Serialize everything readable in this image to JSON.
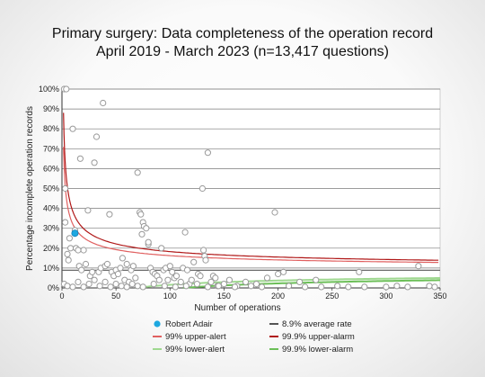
{
  "chart_data": {
    "type": "scatter",
    "title": "Primary surgery: Data completeness of the operation record",
    "subtitle": "April 2019 - March 2023 (n=13,417 questions)",
    "xlabel": "Number of operations",
    "ylabel": "Percentage incomplete operation records",
    "xlim": [
      0,
      350
    ],
    "ylim": [
      0,
      100
    ],
    "x_ticks": [
      "0",
      "50",
      "100",
      "150",
      "200",
      "250",
      "300",
      "350"
    ],
    "y_ticks": [
      "0%",
      "10%",
      "20%",
      "30%",
      "40%",
      "50%",
      "60%",
      "70%",
      "80%",
      "90%",
      "100%"
    ],
    "grid": true,
    "average_rate": 8.9,
    "highlight": {
      "name": "Robert Adair",
      "x": 12,
      "y": 27.5
    },
    "points": [
      [
        2,
        100
      ],
      [
        4,
        100
      ],
      [
        3,
        50
      ],
      [
        3,
        33
      ],
      [
        5,
        17
      ],
      [
        6,
        14
      ],
      [
        7,
        25
      ],
      [
        8,
        20
      ],
      [
        10,
        80
      ],
      [
        12,
        29
      ],
      [
        13,
        20
      ],
      [
        15,
        19
      ],
      [
        16,
        11
      ],
      [
        17,
        65
      ],
      [
        18,
        9
      ],
      [
        20,
        19
      ],
      [
        22,
        12
      ],
      [
        24,
        39
      ],
      [
        26,
        6
      ],
      [
        28,
        8
      ],
      [
        30,
        63
      ],
      [
        32,
        76
      ],
      [
        34,
        8
      ],
      [
        36,
        10
      ],
      [
        38,
        93
      ],
      [
        40,
        11
      ],
      [
        42,
        12
      ],
      [
        44,
        37
      ],
      [
        46,
        8
      ],
      [
        48,
        6
      ],
      [
        50,
        9
      ],
      [
        52,
        7
      ],
      [
        54,
        10
      ],
      [
        56,
        15
      ],
      [
        58,
        4
      ],
      [
        60,
        12
      ],
      [
        62,
        3
      ],
      [
        64,
        9
      ],
      [
        66,
        11
      ],
      [
        68,
        5
      ],
      [
        70,
        58
      ],
      [
        72,
        38
      ],
      [
        73,
        37
      ],
      [
        74,
        27
      ],
      [
        75,
        33
      ],
      [
        76,
        31
      ],
      [
        78,
        30
      ],
      [
        80,
        22
      ],
      [
        80,
        23
      ],
      [
        82,
        10
      ],
      [
        84,
        8
      ],
      [
        86,
        7
      ],
      [
        88,
        6
      ],
      [
        90,
        4
      ],
      [
        92,
        20
      ],
      [
        94,
        9
      ],
      [
        96,
        10
      ],
      [
        98,
        4
      ],
      [
        100,
        11
      ],
      [
        102,
        8
      ],
      [
        104,
        5
      ],
      [
        106,
        6
      ],
      [
        110,
        3
      ],
      [
        112,
        10
      ],
      [
        114,
        28
      ],
      [
        116,
        9
      ],
      [
        118,
        2
      ],
      [
        120,
        4
      ],
      [
        122,
        13
      ],
      [
        126,
        7
      ],
      [
        128,
        6
      ],
      [
        130,
        50
      ],
      [
        131,
        19
      ],
      [
        132,
        16
      ],
      [
        133,
        14
      ],
      [
        135,
        68
      ],
      [
        138,
        3
      ],
      [
        140,
        6
      ],
      [
        142,
        5
      ],
      [
        144,
        1
      ],
      [
        150,
        2
      ],
      [
        155,
        4
      ],
      [
        162,
        1
      ],
      [
        170,
        3
      ],
      [
        180,
        2
      ],
      [
        190,
        5
      ],
      [
        197,
        38
      ],
      [
        200,
        7
      ],
      [
        205,
        8
      ],
      [
        220,
        3
      ],
      [
        235,
        4
      ],
      [
        240,
        0.5
      ],
      [
        275,
        8
      ],
      [
        280,
        0.5
      ],
      [
        330,
        11
      ],
      [
        2,
        2
      ],
      [
        5,
        1
      ],
      [
        10,
        0.5
      ],
      [
        15,
        3
      ],
      [
        20,
        0.5
      ],
      [
        25,
        2
      ],
      [
        30,
        4
      ],
      [
        35,
        1
      ],
      [
        40,
        3
      ],
      [
        45,
        0.5
      ],
      [
        50,
        2
      ],
      [
        55,
        1
      ],
      [
        60,
        0.5
      ],
      [
        65,
        2
      ],
      [
        70,
        1
      ],
      [
        75,
        0.5
      ],
      [
        85,
        2
      ],
      [
        95,
        1
      ],
      [
        105,
        0.5
      ],
      [
        115,
        1
      ],
      [
        125,
        2
      ],
      [
        135,
        0.5
      ],
      [
        145,
        1
      ],
      [
        160,
        0.5
      ],
      [
        175,
        1
      ],
      [
        185,
        0.5
      ],
      [
        210,
        1
      ],
      [
        225,
        0.5
      ],
      [
        255,
        1
      ],
      [
        265,
        0.5
      ],
      [
        300,
        0.5
      ],
      [
        310,
        1
      ],
      [
        320,
        0.5
      ],
      [
        340,
        1
      ],
      [
        345,
        0.5
      ]
    ]
  },
  "legend": [
    {
      "key": "patient",
      "label": "Robert Adair",
      "color": "#1ea8e0"
    },
    {
      "key": "avg",
      "label": "8.9% average rate",
      "color": "#555555"
    },
    {
      "key": "upper_alert",
      "label": "99% upper-alert",
      "color": "#e06060"
    },
    {
      "key": "upper_alarm",
      "label": "99.9% upper-alarm",
      "color": "#b01818"
    },
    {
      "key": "lower_alert",
      "label": "99% lower-alert",
      "color": "#9fd890"
    },
    {
      "key": "lower_alarm",
      "label": "99.9% lower-alarm",
      "color": "#6cbf58"
    }
  ]
}
